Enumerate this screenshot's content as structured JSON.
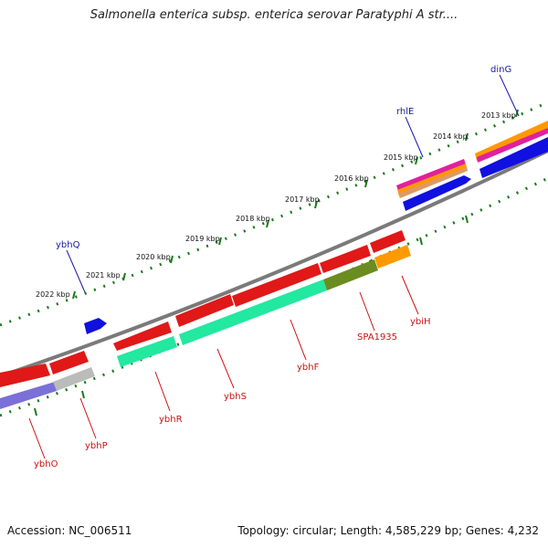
{
  "title": "Salmonella enterica subsp. enterica serovar Paratyphi A str....",
  "footer": {
    "accession": "Accession: NC_006511",
    "summary": "Topology: circular; Length: 4,585,229 bp; Genes: 4,232"
  },
  "colors": {
    "backbone": "#7a7a7a",
    "ticks": "#1a7a1a",
    "forward_label": "#1a1aa8",
    "reverse_label": "#cc1111",
    "red": "#e01818",
    "green": "#22e8a0",
    "olive": "#6b8c1f",
    "orange": "#ff9900",
    "blue": "#1010e0",
    "lavender": "#7a70d8",
    "gray": "#bbbbbb",
    "magenta": "#e020a0"
  },
  "kbp_labels": [
    "2013 kbp",
    "2014 kbp",
    "2015 kbp",
    "2016 kbp",
    "2017 kbp",
    "2018 kbp",
    "2019 kbp",
    "2020 kbp",
    "2021 kbp",
    "2022 kbp"
  ],
  "forward_genes": [
    "dinG",
    "rhlE",
    "ybhQ"
  ],
  "reverse_genes": [
    "ybhO",
    "ybhP",
    "ybhR",
    "ybhS",
    "ybhF",
    "SPA1935",
    "ybiH"
  ]
}
